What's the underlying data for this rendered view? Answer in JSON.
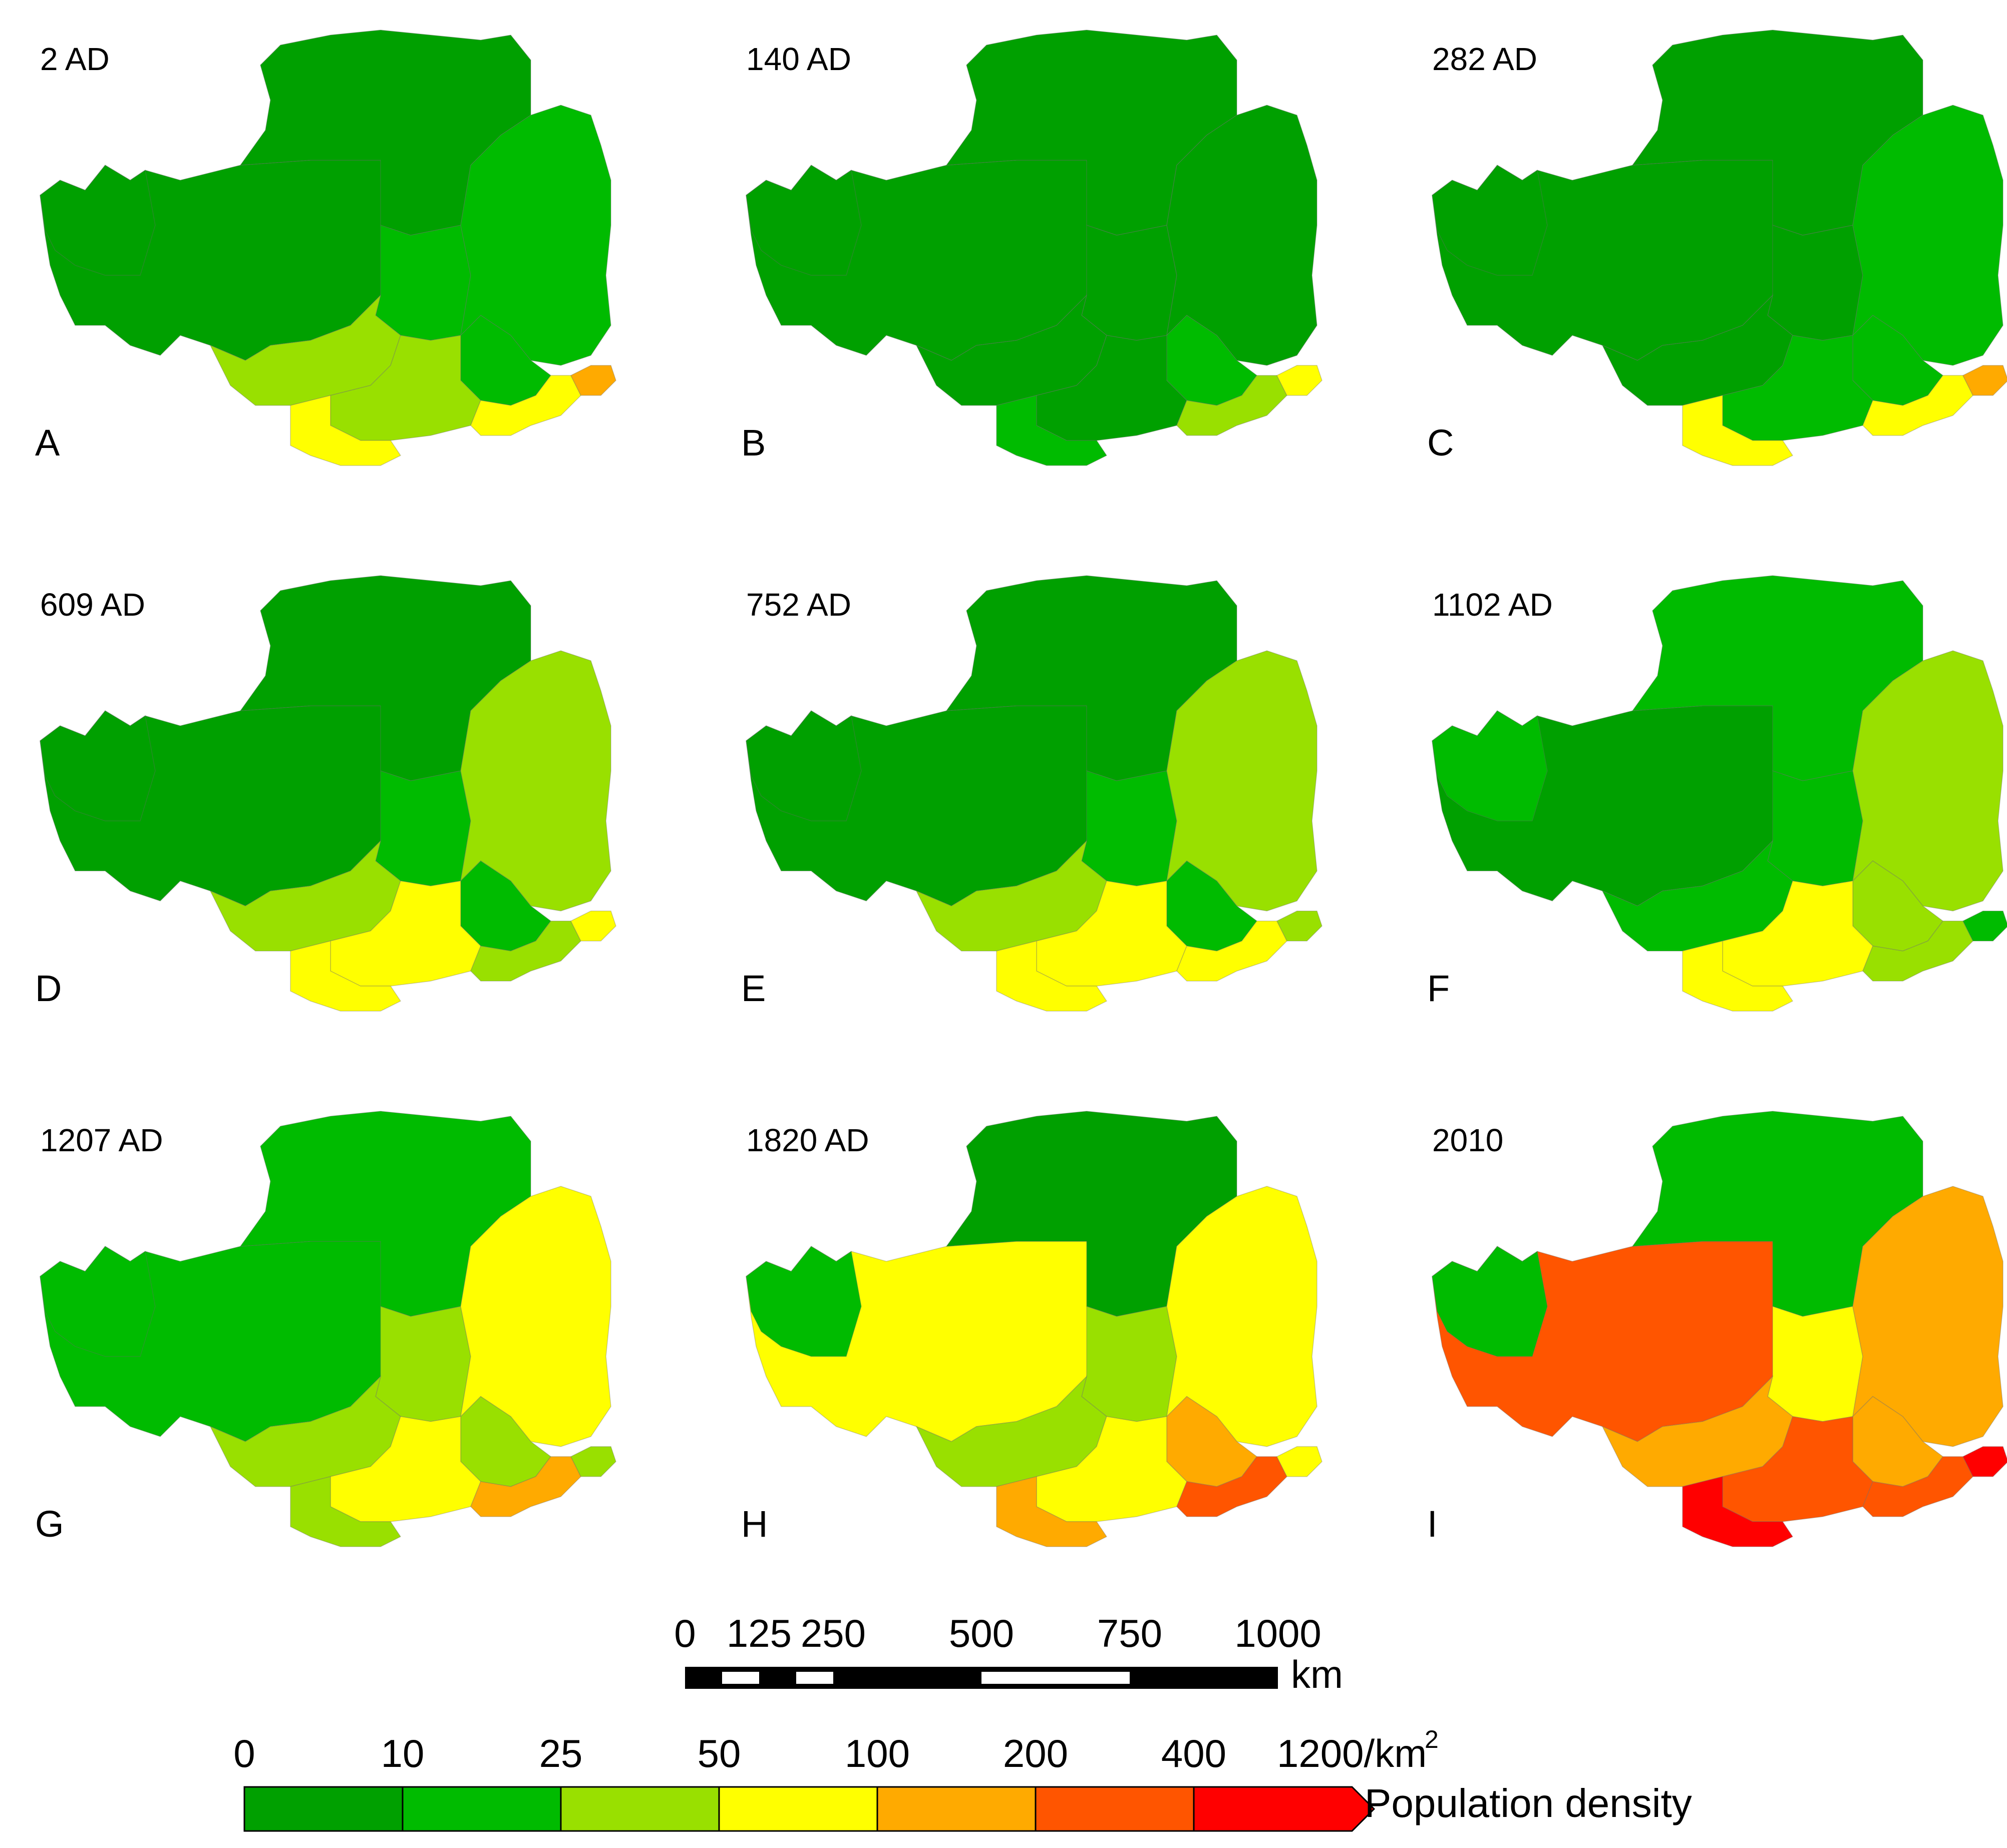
{
  "panels": [
    {
      "letter": "A",
      "year": "2 AD",
      "variant": 0,
      "classes": {
        "nw": 0,
        "west": 0,
        "north": 0,
        "center": 1,
        "east": 1,
        "south1": 2,
        "south2": 2,
        "south3": 3,
        "southeast": 3,
        "se_tip": 4,
        "central_s": 1
      }
    },
    {
      "letter": "B",
      "year": "140 AD",
      "variant": 1,
      "classes": {
        "nw": 0,
        "west": 0,
        "north": 0,
        "center": 0,
        "east": 0,
        "south1": 0,
        "south2": 0,
        "south3": 1,
        "southeast": 2,
        "se_tip": 3,
        "central_s": 1
      }
    },
    {
      "letter": "C",
      "year": "282 AD",
      "variant": 2,
      "classes": {
        "nw": 0,
        "west": 0,
        "north": 0,
        "center": 0,
        "east": 1,
        "south1": 0,
        "south2": 1,
        "south3": 3,
        "southeast": 3,
        "se_tip": 4,
        "central_s": 1
      }
    },
    {
      "letter": "D",
      "year": "609 AD",
      "variant": 0,
      "classes": {
        "nw": 0,
        "west": 0,
        "north": 0,
        "center": 1,
        "east": 2,
        "south1": 2,
        "south2": 3,
        "south3": 3,
        "southeast": 2,
        "se_tip": 3,
        "central_s": 1
      }
    },
    {
      "letter": "E",
      "year": "752 AD",
      "variant": 1,
      "classes": {
        "nw": 0,
        "west": 0,
        "north": 0,
        "center": 1,
        "east": 2,
        "south1": 2,
        "south2": 3,
        "south3": 3,
        "southeast": 3,
        "se_tip": 2,
        "central_s": 1
      }
    },
    {
      "letter": "F",
      "year": "1102 AD",
      "variant": 2,
      "classes": {
        "nw": 1,
        "west": 0,
        "north": 1,
        "center": 1,
        "east": 2,
        "south1": 1,
        "south2": 3,
        "south3": 3,
        "southeast": 2,
        "se_tip": 1,
        "central_s": 2
      }
    },
    {
      "letter": "G",
      "year": "1207 AD",
      "variant": 0,
      "classes": {
        "nw": 1,
        "west": 1,
        "north": 1,
        "center": 2,
        "east": 3,
        "south1": 2,
        "south2": 3,
        "south3": 2,
        "southeast": 4,
        "se_tip": 2,
        "central_s": 2
      }
    },
    {
      "letter": "H",
      "year": "1820 AD",
      "variant": 1,
      "classes": {
        "nw": 1,
        "west": 3,
        "north": 0,
        "center": 2,
        "east": 3,
        "south1": 2,
        "south2": 3,
        "south3": 4,
        "southeast": 5,
        "se_tip": 3,
        "central_s": 4
      }
    },
    {
      "letter": "I",
      "year": "2010",
      "variant": 2,
      "classes": {
        "nw": 1,
        "west": 5,
        "north": 1,
        "center": 3,
        "east": 4,
        "south1": 4,
        "south2": 5,
        "south3": 6,
        "southeast": 5,
        "se_tip": 6,
        "central_s": 4
      }
    }
  ],
  "scale_bar": {
    "ticks": [
      {
        "label": "0",
        "km": 0
      },
      {
        "label": "125",
        "km": 125
      },
      {
        "label": "250",
        "km": 250
      },
      {
        "label": "500",
        "km": 500
      },
      {
        "label": "750",
        "km": 750
      },
      {
        "label": "1000",
        "km": 1000
      }
    ],
    "unit": "km"
  },
  "legend": {
    "title": "Population density",
    "ticks": [
      "0",
      "10",
      "25",
      "50",
      "100",
      "200",
      "400",
      "1200/km"
    ],
    "unit_superscript": "2",
    "colors": [
      "#00a000",
      "#00bb00",
      "#99e000",
      "#ffff00",
      "#ffaa00",
      "#ff5500",
      "#ff0000"
    ]
  }
}
